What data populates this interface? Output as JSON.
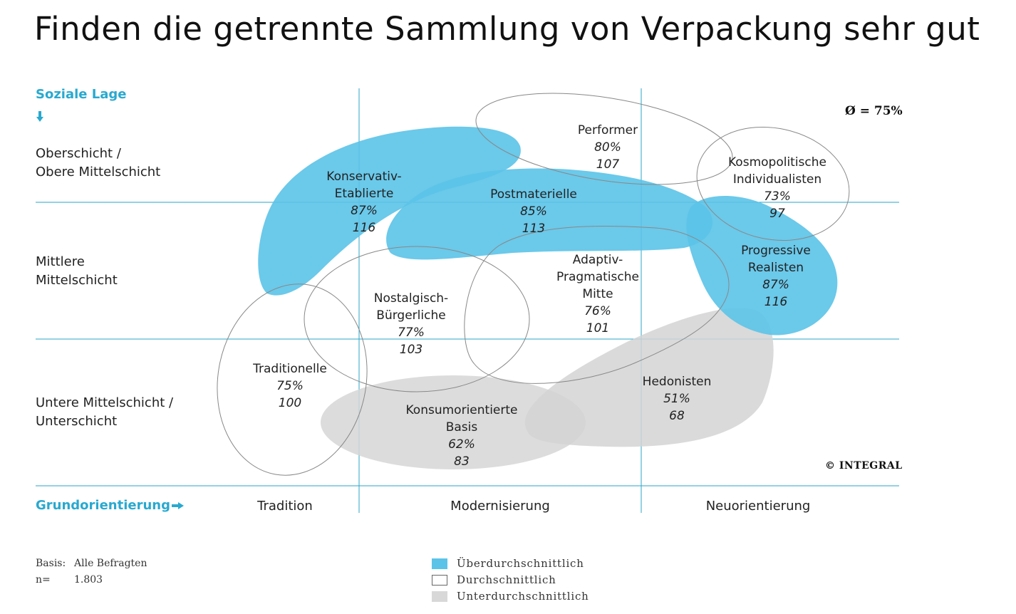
{
  "title": "Finden die getrennte Sammlung von Verpackung sehr gut",
  "average": "Ø = 75%",
  "copyright": "© INTEGRAL",
  "y_axis": {
    "title": "Soziale Lage",
    "arrow_icon": "arrow-down-icon"
  },
  "x_axis": {
    "title": "Grundorientierung",
    "arrow_icon": "arrow-right-icon"
  },
  "rows": [
    {
      "line1": "Oberschicht /",
      "line2": "Obere Mittelschicht"
    },
    {
      "line1": "Mittlere",
      "line2": "Mittelschicht"
    },
    {
      "line1": "Untere Mittelschicht /",
      "line2": "Unterschicht"
    }
  ],
  "columns": [
    "Tradition",
    "Modernisierung",
    "Neuorientierung"
  ],
  "milieus": [
    {
      "id": "performer",
      "name1": "Performer",
      "name2": "",
      "name3": "",
      "pct": "80%",
      "index": "107",
      "category": "average"
    },
    {
      "id": "kosmopolitische",
      "name1": "Kosmopolitische",
      "name2": "Individualisten",
      "name3": "",
      "pct": "73%",
      "index": "97",
      "category": "average"
    },
    {
      "id": "konservativ",
      "name1": "Konservativ-",
      "name2": "Etablierte",
      "name3": "",
      "pct": "87%",
      "index": "116",
      "category": "above"
    },
    {
      "id": "postmaterielle",
      "name1": "Postmaterielle",
      "name2": "",
      "name3": "",
      "pct": "85%",
      "index": "113",
      "category": "above"
    },
    {
      "id": "progressive",
      "name1": "Progressive",
      "name2": "Realisten",
      "name3": "",
      "pct": "87%",
      "index": "116",
      "category": "above"
    },
    {
      "id": "adaptiv",
      "name1": "Adaptiv-",
      "name2": "Pragmatische",
      "name3": "Mitte",
      "pct": "76%",
      "index": "101",
      "category": "average"
    },
    {
      "id": "nostalgisch",
      "name1": "Nostalgisch-",
      "name2": "Bürgerliche",
      "name3": "",
      "pct": "77%",
      "index": "103",
      "category": "average"
    },
    {
      "id": "traditionelle",
      "name1": "Traditionelle",
      "name2": "",
      "name3": "",
      "pct": "75%",
      "index": "100",
      "category": "average"
    },
    {
      "id": "konsum",
      "name1": "Konsumorientierte",
      "name2": "Basis",
      "name3": "",
      "pct": "62%",
      "index": "83",
      "category": "below"
    },
    {
      "id": "hedonisten",
      "name1": "Hedonisten",
      "name2": "",
      "name3": "",
      "pct": "51%",
      "index": "68",
      "category": "below"
    }
  ],
  "footer": {
    "basis_label": "Basis:",
    "basis_value": "Alle Befragten",
    "n_label": "n=",
    "n_value": "1.803"
  },
  "legend": [
    {
      "label": "Überdurchschnittlich",
      "color": "#5bc3e8"
    },
    {
      "label": "Durchschnittlich",
      "color": "#ffffff"
    },
    {
      "label": "Unterdurchschnittlich",
      "color": "#d8d8d8"
    }
  ],
  "colors": {
    "accent": "#29a9cf",
    "grid": "#2aa6c9",
    "above": "#5bc3e8",
    "below": "#d6d6d6",
    "outline": "#888888"
  }
}
